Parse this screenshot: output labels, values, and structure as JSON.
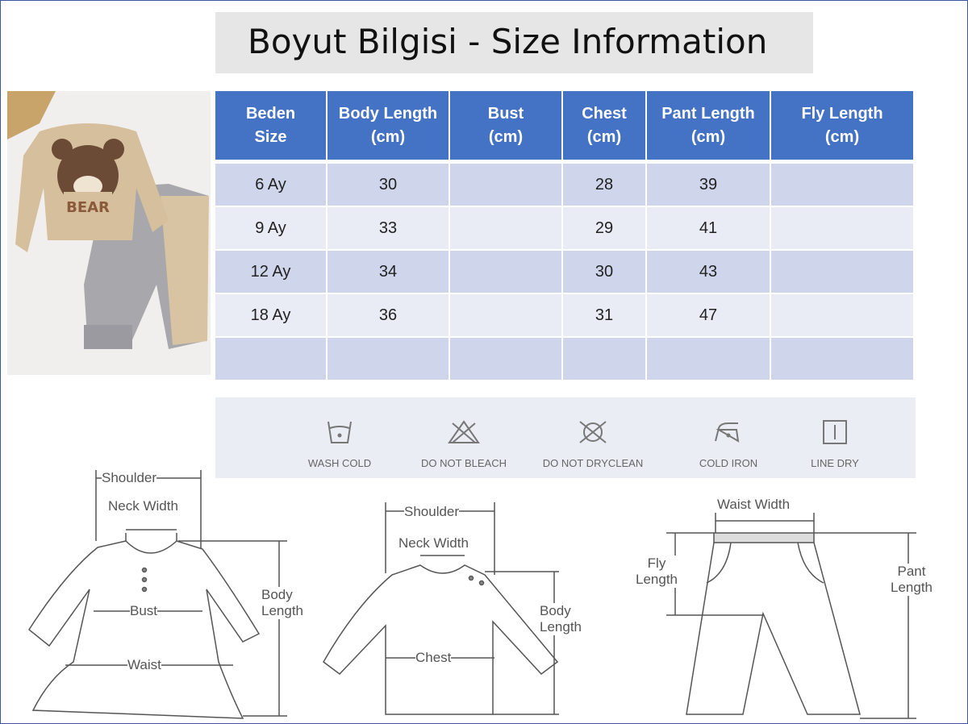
{
  "title": "Boyut Bilgisi - Size Information",
  "table": {
    "headers": [
      [
        "Beden",
        "Size"
      ],
      [
        "Body Length",
        "(cm)"
      ],
      [
        "Bust",
        "(cm)"
      ],
      [
        "Chest",
        "(cm)"
      ],
      [
        "Pant Length",
        "(cm)"
      ],
      [
        "Fly Length",
        "(cm)"
      ]
    ],
    "rows": [
      [
        "6 Ay",
        "30",
        "",
        "28",
        "39",
        ""
      ],
      [
        "9 Ay",
        "33",
        "",
        "29",
        "41",
        ""
      ],
      [
        "12 Ay",
        "34",
        "",
        "30",
        "43",
        ""
      ],
      [
        "18 Ay",
        "36",
        "",
        "31",
        "47",
        ""
      ],
      [
        "",
        "",
        "",
        "",
        "",
        ""
      ]
    ],
    "header_color": "#4472c4"
  },
  "care": [
    {
      "icon": "wash-cold-icon",
      "label": "WASH COLD"
    },
    {
      "icon": "do-not-bleach-icon",
      "label": "DO NOT BLEACH"
    },
    {
      "icon": "do-not-dryclean-icon",
      "label": "DO NOT DRYCLEAN"
    },
    {
      "icon": "cold-iron-icon",
      "label": "COLD IRON"
    },
    {
      "icon": "line-dry-icon",
      "label": "LINE DRY"
    }
  ],
  "diagrams": {
    "dress": {
      "shoulder": "Shoulder",
      "neck": "Neck Width",
      "bust": "Bust",
      "waist": "Waist",
      "body1": "Body",
      "body2": "Length"
    },
    "top": {
      "shoulder": "Shoulder",
      "neck": "Neck Width",
      "chest": "Chest",
      "body1": "Body",
      "body2": "Length"
    },
    "pants": {
      "waist": "Waist Width",
      "fly1": "Fly",
      "fly2": "Length",
      "pant1": "Pant",
      "pant2": "Length"
    }
  },
  "photo": {
    "print_text": "BEAR"
  }
}
